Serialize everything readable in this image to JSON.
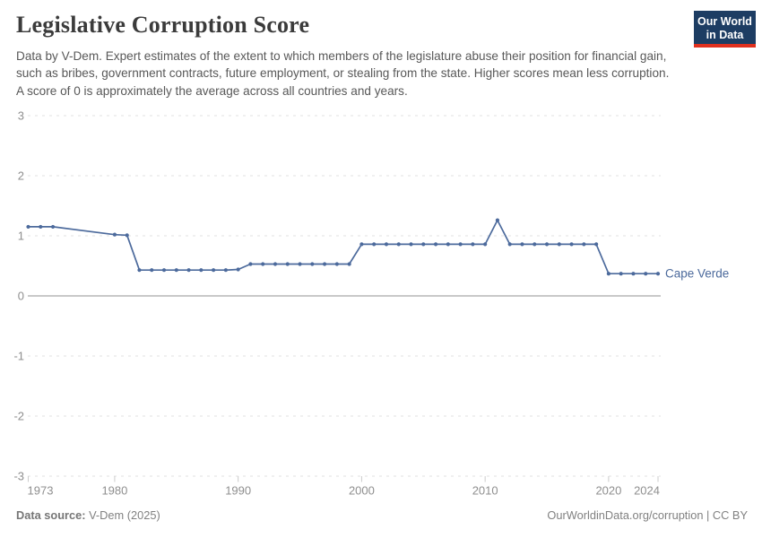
{
  "header": {
    "title": "Legislative Corruption Score",
    "subtitle": "Data by V-Dem. Expert estimates of the extent to which members of the legislature abuse their position for financial gain, such as bribes, government contracts, future employment, or stealing from the state. Higher scores mean less corruption. A score of 0 is approximately the average across all countries and years.",
    "logo": {
      "line1": "Our World",
      "line2": "in Data",
      "bg_color": "#1d3d63",
      "bar_color": "#e0301e"
    }
  },
  "chart_data": {
    "type": "line",
    "title": "Legislative Corruption Score",
    "xlabel": "",
    "ylabel": "",
    "xlim": [
      1973,
      2024
    ],
    "ylim": [
      -3,
      3
    ],
    "x_ticks": [
      1973,
      1980,
      1990,
      2000,
      2010,
      2020,
      2024
    ],
    "y_ticks": [
      3,
      2,
      1,
      0,
      -1,
      -2,
      -3
    ],
    "grid": "horizontal dashed gridlines at each integer, solid line at 0",
    "legend_position": "label at end of line",
    "colors": {
      "line": "#4c6a9c",
      "grid": "#e2e2e2",
      "zero_line": "#a8a8a8",
      "axis_tick_mark": "#cccccc",
      "tick_text": "#8f8f8f"
    },
    "series": [
      {
        "name": "Cape Verde",
        "color": "#4c6a9c",
        "points": [
          [
            1973,
            1.15
          ],
          [
            1974,
            1.15
          ],
          [
            1975,
            1.15
          ],
          [
            1980,
            1.02
          ],
          [
            1981,
            1.01
          ],
          [
            1982,
            0.43
          ],
          [
            1983,
            0.43
          ],
          [
            1984,
            0.43
          ],
          [
            1985,
            0.43
          ],
          [
            1986,
            0.43
          ],
          [
            1987,
            0.43
          ],
          [
            1988,
            0.43
          ],
          [
            1989,
            0.43
          ],
          [
            1990,
            0.44
          ],
          [
            1991,
            0.53
          ],
          [
            1992,
            0.53
          ],
          [
            1993,
            0.53
          ],
          [
            1994,
            0.53
          ],
          [
            1995,
            0.53
          ],
          [
            1996,
            0.53
          ],
          [
            1997,
            0.53
          ],
          [
            1998,
            0.53
          ],
          [
            1999,
            0.53
          ],
          [
            2000,
            0.86
          ],
          [
            2001,
            0.86
          ],
          [
            2002,
            0.86
          ],
          [
            2003,
            0.86
          ],
          [
            2004,
            0.86
          ],
          [
            2005,
            0.86
          ],
          [
            2006,
            0.86
          ],
          [
            2007,
            0.86
          ],
          [
            2008,
            0.86
          ],
          [
            2009,
            0.86
          ],
          [
            2010,
            0.86
          ],
          [
            2011,
            1.26
          ],
          [
            2012,
            0.86
          ],
          [
            2013,
            0.86
          ],
          [
            2014,
            0.86
          ],
          [
            2015,
            0.86
          ],
          [
            2016,
            0.86
          ],
          [
            2017,
            0.86
          ],
          [
            2018,
            0.86
          ],
          [
            2019,
            0.86
          ],
          [
            2020,
            0.37
          ],
          [
            2021,
            0.37
          ],
          [
            2022,
            0.37
          ],
          [
            2023,
            0.37
          ],
          [
            2024,
            0.37
          ]
        ],
        "data_gap_connected_by_line": [
          1975,
          1980
        ]
      }
    ]
  },
  "footer": {
    "source_label": "Data source:",
    "source_value": "V-Dem (2025)",
    "attribution": "OurWorldinData.org/corruption | CC BY"
  }
}
